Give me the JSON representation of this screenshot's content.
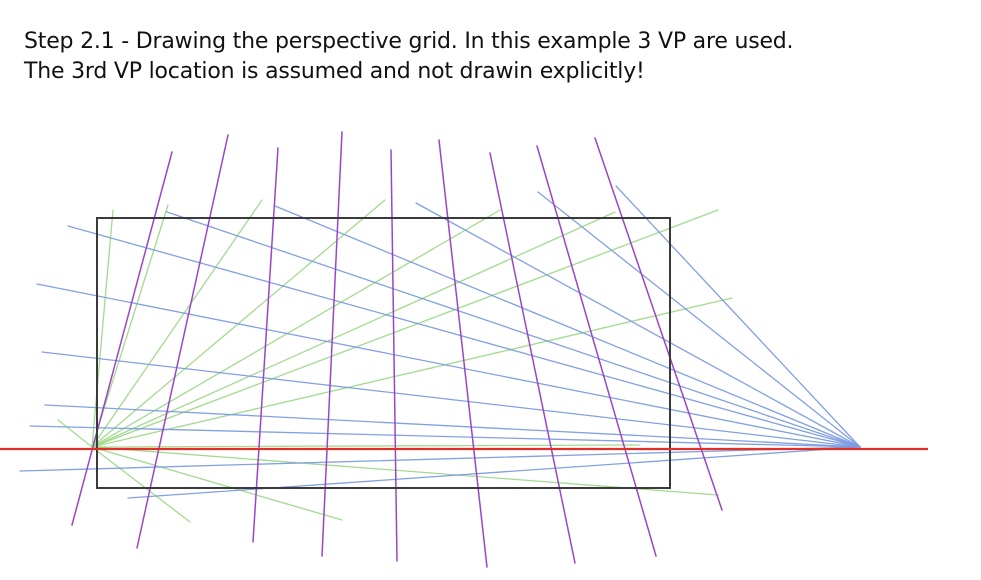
{
  "caption": {
    "line1": "Step 2.1 - Drawing the perspective grid. In this example 3 VP are used.",
    "line2": "The 3rd VP location is assumed and not drawin explicitly!"
  },
  "colors": {
    "horizon": "#e0302a",
    "vp_right_lines": "#7b9be0",
    "vp_left_lines": "#9ed88a",
    "vertical_lines": "#9a45c8",
    "frame": "#3a3a3a"
  }
}
